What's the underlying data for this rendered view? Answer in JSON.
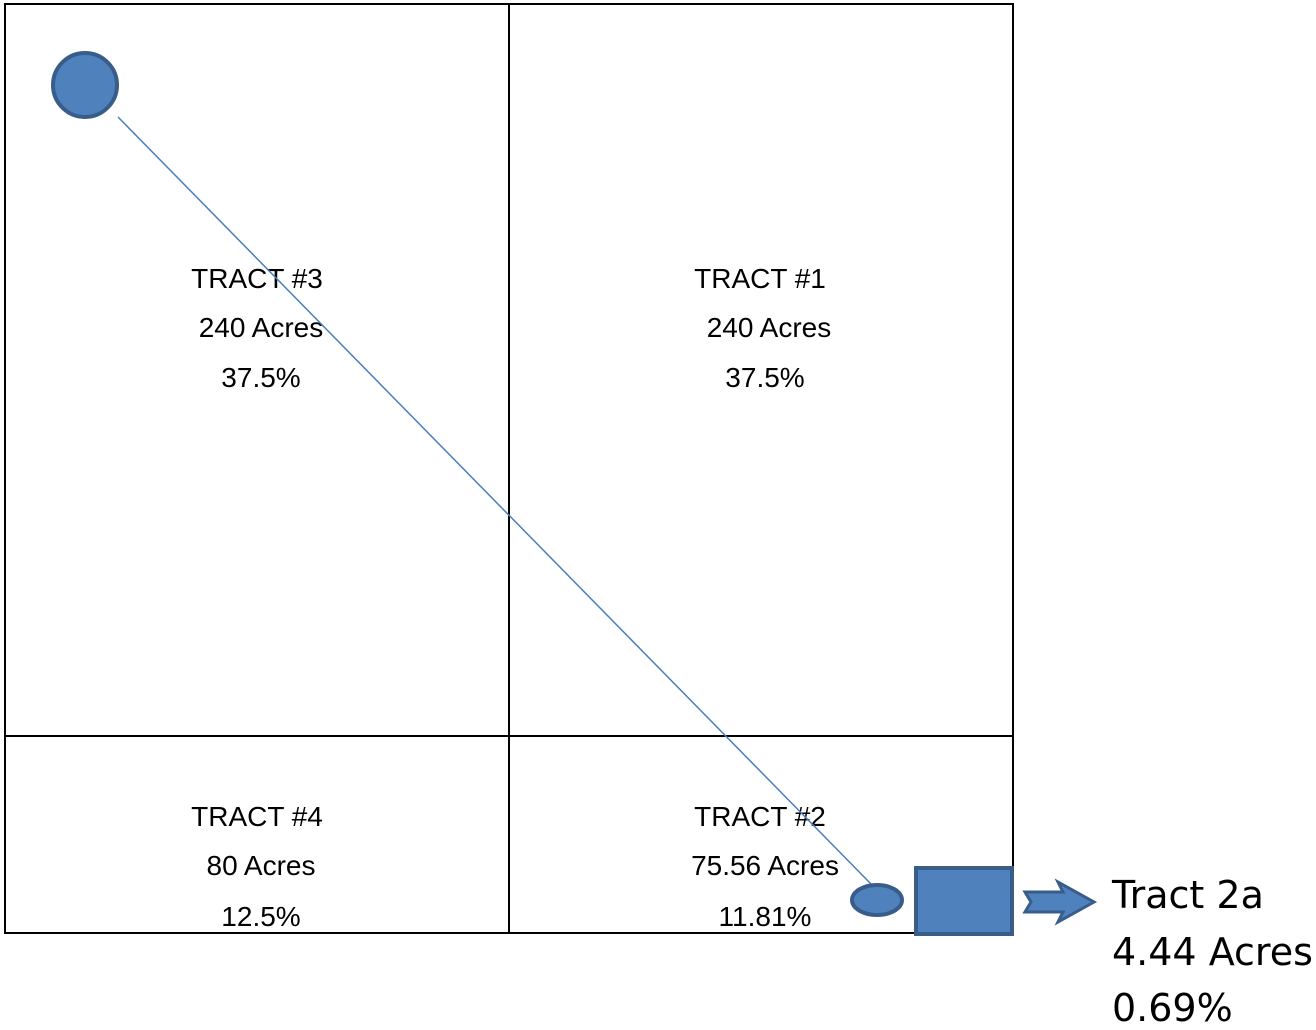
{
  "colors": {
    "border": "#000000",
    "shape_fill": "#4f81bd",
    "shape_stroke": "#385d8a",
    "line": "#4a7ebb"
  },
  "tracts": [
    {
      "name": "TRACT #3",
      "acres": "240 Acres",
      "percent": "37.5%"
    },
    {
      "name": "TRACT #1",
      "acres": "240 Acres",
      "percent": "37.5%"
    },
    {
      "name": "TRACT #4",
      "acres": "80 Acres",
      "percent": "12.5%"
    },
    {
      "name": "TRACT #2",
      "acres": "75.56 Acres",
      "percent": "11.81%"
    }
  ],
  "callout": {
    "name": "Tract 2a",
    "acres": "4.44 Acres",
    "percent": "0.69%"
  },
  "icons": [
    "circle-marker",
    "small-oval-marker",
    "square-marker",
    "right-arrow"
  ]
}
